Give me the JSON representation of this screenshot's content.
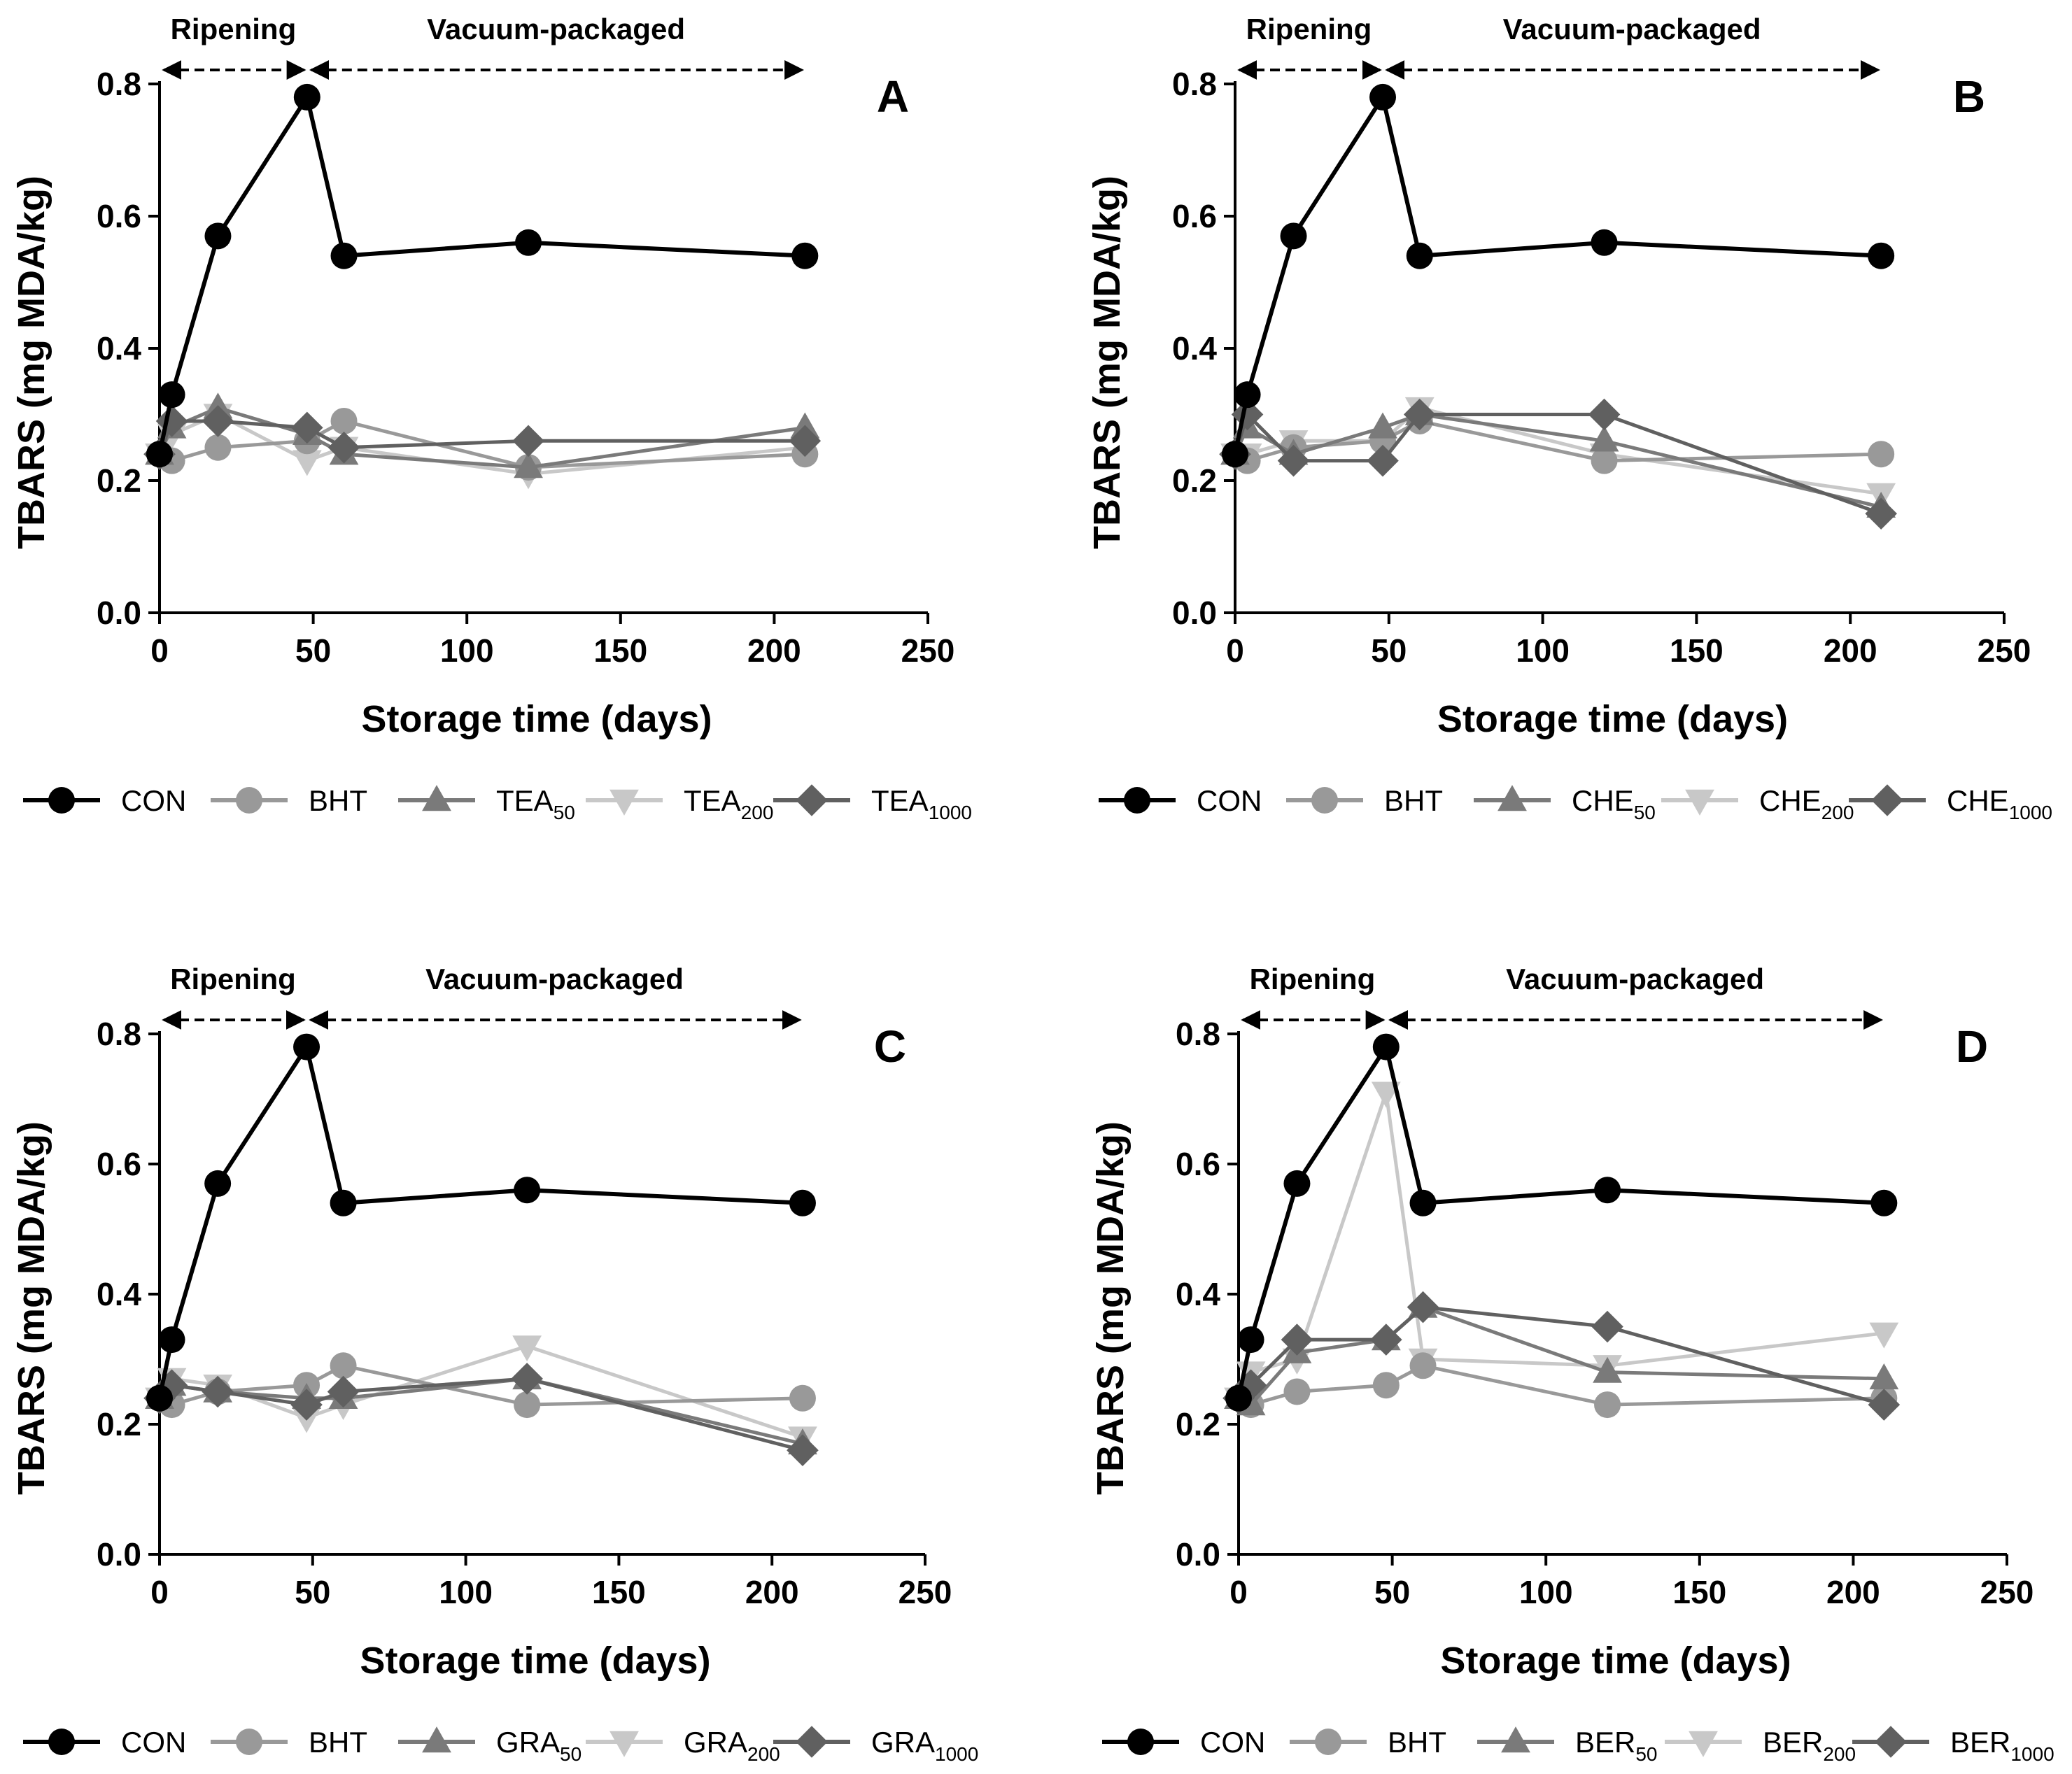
{
  "chart_data": [
    {
      "type": "line",
      "panel_label": "A",
      "xlabel": "Storage time (days)",
      "ylabel": "TBARS (mg MDA/kg)",
      "xlim": [
        0,
        250
      ],
      "ylim": [
        0,
        0.8
      ],
      "xticks": [
        "0",
        "50",
        "100",
        "150",
        "200",
        "250"
      ],
      "yticks": [
        "0.0",
        "0.2",
        "0.4",
        "0.6",
        "0.8"
      ],
      "phases": [
        {
          "label": "Ripening",
          "from": 0,
          "to": 48
        },
        {
          "label": "Vacuum-packaged",
          "from": 48,
          "to": 210
        }
      ],
      "x": [
        0,
        4,
        19,
        48,
        60,
        120,
        210
      ],
      "series": [
        {
          "name": "CON",
          "sub": "",
          "marker": "circle",
          "color": "#000000",
          "values": [
            0.24,
            0.33,
            0.57,
            0.78,
            0.54,
            0.56,
            0.54
          ]
        },
        {
          "name": "BHT",
          "sub": "",
          "marker": "circle",
          "color": "#999999",
          "values": [
            0.24,
            0.23,
            0.25,
            0.26,
            0.29,
            0.22,
            0.24
          ]
        },
        {
          "name": "TEA",
          "sub": "50",
          "marker": "triangle-up",
          "color": "#7a7a7a",
          "values": [
            0.24,
            0.28,
            0.31,
            0.27,
            0.24,
            0.22,
            0.28
          ]
        },
        {
          "name": "TEA",
          "sub": "200",
          "marker": "triangle-down",
          "color": "#c8c8c8",
          "values": [
            0.24,
            0.27,
            0.3,
            0.23,
            0.25,
            0.21,
            0.25
          ]
        },
        {
          "name": "TEA",
          "sub": "1000",
          "marker": "diamond",
          "color": "#606060",
          "values": [
            0.24,
            0.29,
            0.29,
            0.28,
            0.25,
            0.26,
            0.26
          ]
        }
      ]
    },
    {
      "type": "line",
      "panel_label": "B",
      "xlabel": "Storage time (days)",
      "ylabel": "TBARS (mg MDA/kg)",
      "xlim": [
        0,
        250
      ],
      "ylim": [
        0,
        0.8
      ],
      "xticks": [
        "0",
        "50",
        "100",
        "150",
        "200",
        "250"
      ],
      "yticks": [
        "0.0",
        "0.2",
        "0.4",
        "0.6",
        "0.8"
      ],
      "phases": [
        {
          "label": "Ripening",
          "from": 0,
          "to": 48
        },
        {
          "label": "Vacuum-packaged",
          "from": 48,
          "to": 210
        }
      ],
      "x": [
        0,
        4,
        19,
        48,
        60,
        120,
        210
      ],
      "series": [
        {
          "name": "CON",
          "sub": "",
          "marker": "circle",
          "color": "#000000",
          "values": [
            0.24,
            0.33,
            0.57,
            0.78,
            0.54,
            0.56,
            0.54
          ]
        },
        {
          "name": "BHT",
          "sub": "",
          "marker": "circle",
          "color": "#999999",
          "values": [
            0.24,
            0.23,
            0.25,
            0.26,
            0.29,
            0.23,
            0.24
          ]
        },
        {
          "name": "CHE",
          "sub": "50",
          "marker": "triangle-up",
          "color": "#7a7a7a",
          "values": [
            0.24,
            0.28,
            0.24,
            0.28,
            0.3,
            0.26,
            0.16
          ]
        },
        {
          "name": "CHE",
          "sub": "200",
          "marker": "triangle-down",
          "color": "#c8c8c8",
          "values": [
            0.24,
            0.24,
            0.26,
            0.26,
            0.31,
            0.24,
            0.18
          ]
        },
        {
          "name": "CHE",
          "sub": "1000",
          "marker": "diamond",
          "color": "#606060",
          "values": [
            0.24,
            0.3,
            0.23,
            0.23,
            0.3,
            0.3,
            0.15
          ]
        }
      ]
    },
    {
      "type": "line",
      "panel_label": "C",
      "xlabel": "Storage time (days)",
      "ylabel": "TBARS (mg MDA/kg)",
      "xlim": [
        0,
        250
      ],
      "ylim": [
        0,
        0.8
      ],
      "xticks": [
        "0",
        "50",
        "100",
        "150",
        "200",
        "250"
      ],
      "yticks": [
        "0.0",
        "0.2",
        "0.4",
        "0.6",
        "0.8"
      ],
      "phases": [
        {
          "label": "Ripening",
          "from": 0,
          "to": 48
        },
        {
          "label": "Vacuum-packaged",
          "from": 48,
          "to": 210
        }
      ],
      "x": [
        0,
        4,
        19,
        48,
        60,
        120,
        210
      ],
      "series": [
        {
          "name": "CON",
          "sub": "",
          "marker": "circle",
          "color": "#000000",
          "values": [
            0.24,
            0.33,
            0.57,
            0.78,
            0.54,
            0.56,
            0.54
          ]
        },
        {
          "name": "BHT",
          "sub": "",
          "marker": "circle",
          "color": "#999999",
          "values": [
            0.24,
            0.23,
            0.25,
            0.26,
            0.29,
            0.23,
            0.24
          ]
        },
        {
          "name": "GRA",
          "sub": "50",
          "marker": "triangle-up",
          "color": "#7a7a7a",
          "values": [
            0.24,
            0.26,
            0.25,
            0.24,
            0.24,
            0.27,
            0.17
          ]
        },
        {
          "name": "GRA",
          "sub": "200",
          "marker": "triangle-down",
          "color": "#c8c8c8",
          "values": [
            0.24,
            0.27,
            0.26,
            0.21,
            0.23,
            0.32,
            0.18
          ]
        },
        {
          "name": "GRA",
          "sub": "1000",
          "marker": "diamond",
          "color": "#606060",
          "values": [
            0.24,
            0.26,
            0.25,
            0.23,
            0.25,
            0.27,
            0.16
          ]
        }
      ]
    },
    {
      "type": "line",
      "panel_label": "D",
      "xlabel": "Storage time (days)",
      "ylabel": "TBARS (mg MDA/kg)",
      "xlim": [
        0,
        250
      ],
      "ylim": [
        0,
        0.8
      ],
      "xticks": [
        "0",
        "50",
        "100",
        "150",
        "200",
        "250"
      ],
      "yticks": [
        "0.0",
        "0.2",
        "0.4",
        "0.6",
        "0.8"
      ],
      "phases": [
        {
          "label": "Ripening",
          "from": 0,
          "to": 48
        },
        {
          "label": "Vacuum-packaged",
          "from": 48,
          "to": 210
        }
      ],
      "x": [
        0,
        4,
        19,
        48,
        60,
        120,
        210
      ],
      "series": [
        {
          "name": "CON",
          "sub": "",
          "marker": "circle",
          "color": "#000000",
          "values": [
            0.24,
            0.33,
            0.57,
            0.78,
            0.54,
            0.56,
            0.54
          ]
        },
        {
          "name": "BHT",
          "sub": "",
          "marker": "circle",
          "color": "#999999",
          "values": [
            0.24,
            0.23,
            0.25,
            0.26,
            0.29,
            0.23,
            0.24
          ]
        },
        {
          "name": "BER",
          "sub": "50",
          "marker": "triangle-up",
          "color": "#7a7a7a",
          "values": [
            0.24,
            0.23,
            0.31,
            0.33,
            0.38,
            0.28,
            0.27
          ]
        },
        {
          "name": "BER",
          "sub": "200",
          "marker": "triangle-down",
          "color": "#c8c8c8",
          "values": [
            0.24,
            0.28,
            0.3,
            0.71,
            0.3,
            0.29,
            0.34
          ]
        },
        {
          "name": "BER",
          "sub": "1000",
          "marker": "diamond",
          "color": "#606060",
          "values": [
            0.24,
            0.26,
            0.33,
            0.33,
            0.38,
            0.35,
            0.23
          ]
        }
      ]
    }
  ]
}
